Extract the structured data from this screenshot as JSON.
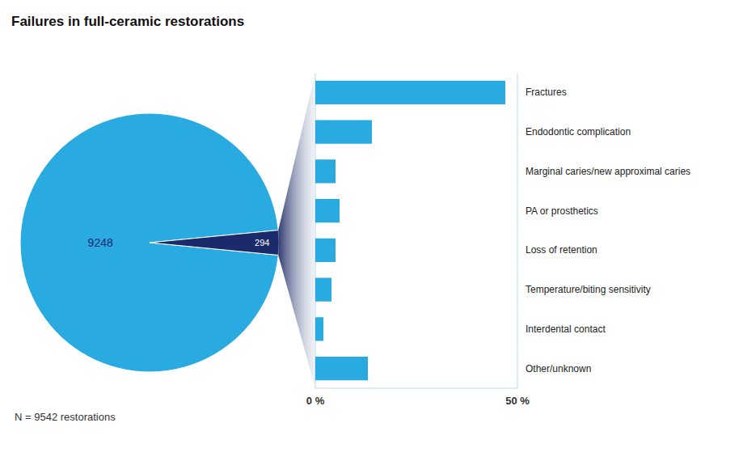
{
  "chart_data": [
    {
      "type": "pie",
      "title": "Failures in full-ceramic restorations",
      "values": [
        9248,
        294
      ],
      "colors": [
        "#29ABE2",
        "#1B2A6B"
      ],
      "data_labels": true,
      "annotations": [
        "N = 9542 restorations"
      ]
    },
    {
      "type": "bar",
      "orientation": "horizontal",
      "categories": [
        "Fractures",
        "Endodontic complication",
        "Marginal caries/new approximal caries",
        "PA or prosthetics",
        "Loss of retention",
        "Temperature/biting sensitivity",
        "Interdental contact",
        "Other/unknown"
      ],
      "values": [
        47,
        14,
        5,
        6,
        5,
        4,
        2,
        13
      ],
      "color": "#29ABE2",
      "xlim": [
        0,
        50
      ],
      "xticks": [
        {
          "value": 0,
          "label": "0 %"
        },
        {
          "value": 50,
          "label": "50 %"
        }
      ],
      "grid": true
    }
  ]
}
